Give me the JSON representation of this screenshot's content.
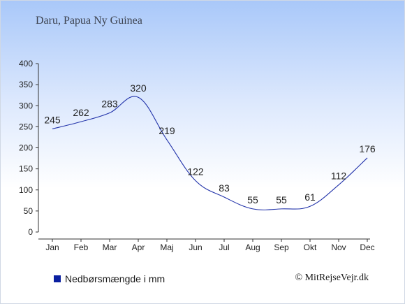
{
  "chart_data": {
    "type": "line",
    "title": "Daru, Papua Ny Guinea",
    "categories": [
      "Jan",
      "Feb",
      "Mar",
      "Apr",
      "Maj",
      "Jun",
      "Jul",
      "Aug",
      "Sep",
      "Okt",
      "Nov",
      "Dec"
    ],
    "series": [
      {
        "name": "Nedbørsmængde i mm",
        "values": [
          245,
          262,
          283,
          320,
          219,
          122,
          83,
          55,
          55,
          61,
          112,
          176
        ],
        "color": "#2233aa"
      }
    ],
    "y_ticks": [
      0,
      50,
      100,
      150,
      200,
      250,
      300,
      350,
      400
    ],
    "ylim": [
      0,
      400
    ],
    "xlabel": "",
    "ylabel": "",
    "grid": false,
    "legend": "bottom-left"
  },
  "legend_label": "Nedbørsmængde i mm",
  "legend_color": "#0a1fa0",
  "credit": "© MitRejseVejr.dk"
}
